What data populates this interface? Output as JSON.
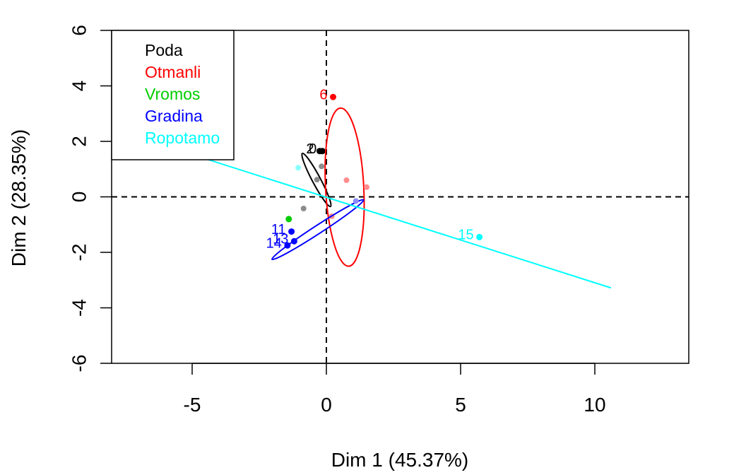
{
  "chart_data": {
    "type": "scatter",
    "xlabel": "Dim 1 (45.37%)",
    "ylabel": "Dim 2 (28.35%)",
    "xlim": [
      -8.0,
      13.5
    ],
    "ylim": [
      -6.0,
      6.0
    ],
    "x_ticks": [
      {
        "value": -5,
        "label": "-5"
      },
      {
        "value": 0,
        "label": "0"
      },
      {
        "value": 5,
        "label": "5"
      },
      {
        "value": 10,
        "label": "10"
      }
    ],
    "y_ticks": [
      {
        "value": -6,
        "label": "-6"
      },
      {
        "value": -4,
        "label": "-4"
      },
      {
        "value": -2,
        "label": "-2"
      },
      {
        "value": 0,
        "label": "0"
      },
      {
        "value": 2,
        "label": "2"
      },
      {
        "value": 4,
        "label": "4"
      },
      {
        "value": 6,
        "label": "6"
      }
    ],
    "reference_lines": {
      "x": 0,
      "y": 0,
      "style": "dashed"
    },
    "legend": {
      "placement": "top-left",
      "entries": [
        {
          "label": "Poda",
          "color": "#000000"
        },
        {
          "label": "Otmanli",
          "color": "#ff0000"
        },
        {
          "label": "Vromos",
          "color": "#00cd00"
        },
        {
          "label": "Gradina",
          "color": "#0000ff"
        },
        {
          "label": "Ropotamo",
          "color": "#00ffff"
        }
      ]
    },
    "series": [
      {
        "name": "Poda",
        "color": "#000000",
        "points": [
          {
            "x": -0.25,
            "y": 1.65,
            "label": "2"
          },
          {
            "x": -0.15,
            "y": 1.65,
            "label": "0"
          }
        ],
        "centroids": [
          {
            "x": -0.18,
            "y": 1.1
          },
          {
            "x": -0.35,
            "y": 0.62
          },
          {
            "x": -0.85,
            "y": -0.42
          }
        ],
        "ellipse": {
          "cx": -0.37,
          "cy": 0.61,
          "rx": 1.1,
          "ry": 0.15,
          "angle_deg": 62
        }
      },
      {
        "name": "Otmanli",
        "color": "#ff0000",
        "points": [
          {
            "x": 0.25,
            "y": 3.6,
            "label": "6"
          }
        ],
        "centroids": [
          {
            "x": 0.75,
            "y": 0.6
          },
          {
            "x": 1.5,
            "y": 0.35
          },
          {
            "x": 0.2,
            "y": -0.7
          }
        ],
        "ellipse": {
          "cx": 0.68,
          "cy": 0.35,
          "rx": 0.7,
          "ry": 2.9,
          "angle_deg": -3
        }
      },
      {
        "name": "Vromos",
        "color": "#00cd00",
        "points": [
          {
            "x": -1.4,
            "y": -0.8,
            "label": ""
          }
        ],
        "centroids": [],
        "ellipse": null
      },
      {
        "name": "Gradina",
        "color": "#0000ff",
        "points": [
          {
            "x": -1.3,
            "y": -1.25,
            "label": "11"
          },
          {
            "x": -1.2,
            "y": -1.6,
            "label": "13"
          },
          {
            "x": -1.45,
            "y": -1.75,
            "label": "14"
          }
        ],
        "centroids": [
          {
            "x": 1.1,
            "y": -0.15
          }
        ],
        "ellipse": {
          "cx": -0.32,
          "cy": -1.18,
          "rx": 2.0,
          "ry": 0.15,
          "angle_deg": -33
        }
      },
      {
        "name": "Ropotamo",
        "color": "#00ffff",
        "points": [
          {
            "x": 5.7,
            "y": -1.45,
            "label": "15"
          }
        ],
        "centroids": [
          {
            "x": -1.05,
            "y": 1.05
          }
        ],
        "line": [
          {
            "x": -8.0,
            "y": 2.45
          },
          {
            "x": 10.6,
            "y": -3.28
          }
        ]
      }
    ]
  }
}
